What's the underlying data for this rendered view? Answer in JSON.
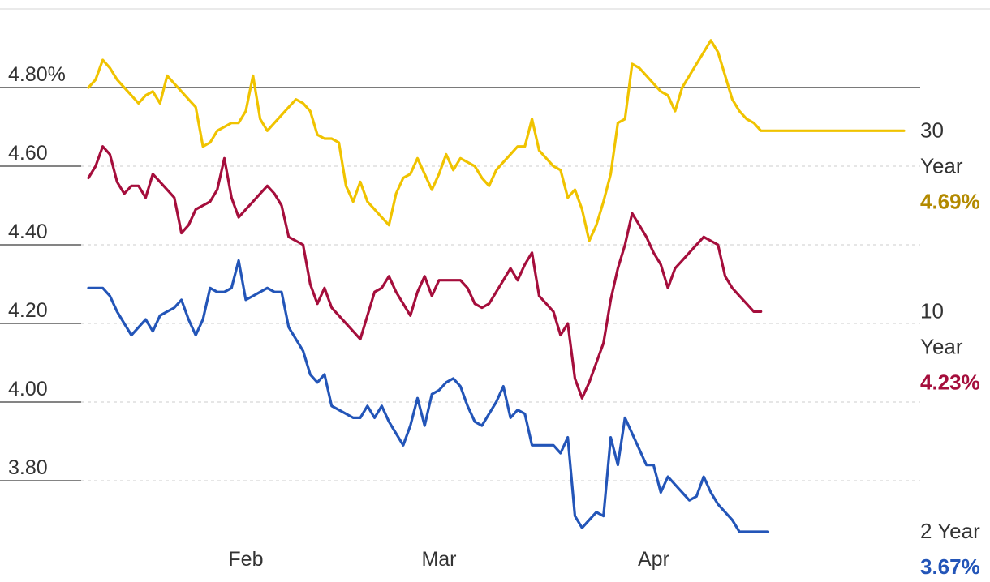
{
  "chart_data": {
    "type": "line",
    "ylim": [
      3.67,
      4.96
    ],
    "y_ticks": [
      {
        "value": 4.8,
        "label": "4.80%"
      },
      {
        "value": 4.6,
        "label": "4.60"
      },
      {
        "value": 4.4,
        "label": "4.40"
      },
      {
        "value": 4.2,
        "label": "4.20"
      },
      {
        "value": 4.0,
        "label": "4.00"
      },
      {
        "value": 3.8,
        "label": "3.80"
      }
    ],
    "x_ticks": [
      {
        "x": 23,
        "label": "Feb"
      },
      {
        "x": 50,
        "label": "Mar"
      },
      {
        "x": 80,
        "label": "Apr"
      }
    ],
    "xlim": [
      1,
      115
    ],
    "grid": true,
    "reference_line": 4.8,
    "series": [
      {
        "key": "y30",
        "name_lines": [
          "30",
          "Year"
        ],
        "end_value_label": "4.69%",
        "color": "#f0c300",
        "label_color": "#b38a00",
        "x": [
          1,
          2,
          3,
          4,
          5,
          6,
          7,
          8,
          9,
          10,
          11,
          12,
          13,
          14,
          15,
          16,
          17,
          18,
          19,
          20,
          21,
          22,
          23,
          24,
          25,
          26,
          27,
          28,
          29,
          30,
          31,
          32,
          33,
          34,
          35,
          36,
          37,
          38,
          39,
          40,
          41,
          42,
          43,
          44,
          45,
          46,
          47,
          48,
          49,
          50,
          51,
          52,
          53,
          54,
          55,
          56,
          57,
          58,
          59,
          60,
          61,
          62,
          63,
          64,
          65,
          66,
          67,
          68,
          69,
          70,
          71,
          72,
          73,
          74,
          75,
          76,
          77,
          78,
          79,
          80,
          81,
          82,
          83,
          84,
          85,
          86,
          87,
          88,
          89,
          90,
          91,
          92,
          93,
          94,
          95,
          96,
          97,
          98,
          99,
          100,
          101,
          102,
          103,
          104,
          105,
          106,
          107,
          108,
          109,
          110,
          111,
          112,
          113,
          114,
          115
        ],
        "y": [
          4.8,
          4.82,
          4.87,
          4.85,
          4.82,
          4.8,
          4.78,
          4.76,
          4.78,
          4.79,
          4.76,
          4.83,
          4.81,
          4.79,
          4.77,
          4.75,
          4.65,
          4.66,
          4.69,
          4.7,
          4.71,
          4.71,
          4.74,
          4.83,
          4.72,
          4.69,
          4.71,
          4.73,
          4.75,
          4.77,
          4.76,
          4.74,
          4.68,
          4.67,
          4.67,
          4.66,
          4.55,
          4.51,
          4.56,
          4.51,
          4.49,
          4.47,
          4.45,
          4.53,
          4.57,
          4.58,
          4.62,
          4.58,
          4.54,
          4.58,
          4.63,
          4.59,
          4.62,
          4.61,
          4.6,
          4.57,
          4.55,
          4.59,
          4.61,
          4.63,
          4.65,
          4.65,
          4.72,
          4.64,
          4.62,
          4.6,
          4.59,
          4.52,
          4.54,
          4.49,
          4.41,
          4.45,
          4.51,
          4.58,
          4.71,
          4.72,
          4.86,
          4.85,
          4.83,
          4.81,
          4.79,
          4.78,
          4.74,
          4.8,
          4.83,
          4.86,
          4.89,
          4.92,
          4.89,
          4.83,
          4.77,
          4.74,
          4.72,
          4.71,
          4.69,
          4.69,
          4.69,
          4.69,
          4.69,
          4.69,
          4.69,
          4.69,
          4.69,
          4.69,
          4.69,
          4.69,
          4.69,
          4.69,
          4.69,
          4.69,
          4.69,
          4.69,
          4.69,
          4.69,
          4.69
        ]
      },
      {
        "key": "y10",
        "name_lines": [
          "10",
          "Year"
        ],
        "end_value_label": "4.23%",
        "color": "#a50e3c",
        "label_color": "#a50e3c",
        "x": [
          1,
          2,
          3,
          4,
          5,
          6,
          7,
          8,
          9,
          10,
          11,
          12,
          13,
          14,
          15,
          16,
          17,
          18,
          19,
          20,
          21,
          22,
          23,
          24,
          25,
          26,
          27,
          28,
          29,
          30,
          31,
          32,
          33,
          34,
          35,
          36,
          37,
          38,
          39,
          40,
          41,
          42,
          43,
          44,
          45,
          46,
          47,
          48,
          49,
          50,
          51,
          52,
          53,
          54,
          55,
          56,
          57,
          58,
          59,
          60,
          61,
          62,
          63,
          64,
          65,
          66,
          67,
          68,
          69,
          70,
          71,
          72,
          73,
          74,
          75,
          76,
          77,
          78,
          79,
          80,
          81,
          82,
          83,
          84,
          85,
          86,
          87,
          88,
          89,
          90,
          91,
          92,
          93,
          94,
          95
        ],
        "y": [
          4.57,
          4.6,
          4.65,
          4.63,
          4.56,
          4.53,
          4.55,
          4.55,
          4.52,
          4.58,
          4.56,
          4.54,
          4.52,
          4.43,
          4.45,
          4.49,
          4.5,
          4.51,
          4.54,
          4.62,
          4.52,
          4.47,
          4.49,
          4.51,
          4.53,
          4.55,
          4.53,
          4.5,
          4.42,
          4.41,
          4.4,
          4.3,
          4.25,
          4.29,
          4.24,
          4.22,
          4.2,
          4.18,
          4.16,
          4.22,
          4.28,
          4.29,
          4.32,
          4.28,
          4.25,
          4.22,
          4.28,
          4.32,
          4.27,
          4.31,
          4.31,
          4.31,
          4.31,
          4.29,
          4.25,
          4.24,
          4.25,
          4.28,
          4.31,
          4.34,
          4.31,
          4.35,
          4.38,
          4.27,
          4.25,
          4.23,
          4.17,
          4.2,
          4.06,
          4.01,
          4.05,
          4.1,
          4.15,
          4.26,
          4.34,
          4.4,
          4.48,
          4.45,
          4.42,
          4.38,
          4.35,
          4.29,
          4.34,
          4.36,
          4.38,
          4.4,
          4.42,
          4.41,
          4.4,
          4.32,
          4.29,
          4.27,
          4.25,
          4.23,
          4.23
        ]
      },
      {
        "key": "y2",
        "name_lines": [
          "2 Year"
        ],
        "end_value_label": "3.67%",
        "color": "#2355b8",
        "label_color": "#2355b8",
        "x": [
          1,
          2,
          3,
          4,
          5,
          6,
          7,
          8,
          9,
          10,
          11,
          12,
          13,
          14,
          15,
          16,
          17,
          18,
          19,
          20,
          21,
          22,
          23,
          24,
          25,
          26,
          27,
          28,
          29,
          30,
          31,
          32,
          33,
          34,
          35,
          36,
          37,
          38,
          39,
          40,
          41,
          42,
          43,
          44,
          45,
          46,
          47,
          48,
          49,
          50,
          51,
          52,
          53,
          54,
          55,
          56,
          57,
          58,
          59,
          60,
          61,
          62,
          63,
          64,
          65,
          66,
          67,
          68,
          69,
          70,
          71,
          72,
          73,
          74,
          75,
          76,
          77,
          78,
          79,
          80,
          81,
          82,
          83,
          84,
          85,
          86,
          87,
          88,
          89,
          90,
          91,
          92,
          93,
          94,
          95,
          96
        ],
        "y": [
          4.29,
          4.29,
          4.29,
          4.27,
          4.23,
          4.2,
          4.17,
          4.19,
          4.21,
          4.18,
          4.22,
          4.23,
          4.24,
          4.26,
          4.21,
          4.17,
          4.21,
          4.29,
          4.28,
          4.28,
          4.29,
          4.36,
          4.26,
          4.27,
          4.28,
          4.29,
          4.28,
          4.28,
          4.19,
          4.16,
          4.13,
          4.07,
          4.05,
          4.07,
          3.99,
          3.98,
          3.97,
          3.96,
          3.96,
          3.99,
          3.96,
          3.99,
          3.95,
          3.92,
          3.89,
          3.94,
          4.01,
          3.94,
          4.02,
          4.03,
          4.05,
          4.06,
          4.04,
          3.99,
          3.95,
          3.94,
          3.97,
          4.0,
          4.04,
          3.96,
          3.98,
          3.97,
          3.89,
          3.89,
          3.89,
          3.89,
          3.87,
          3.91,
          3.71,
          3.68,
          3.7,
          3.72,
          3.71,
          3.91,
          3.84,
          3.96,
          3.92,
          3.88,
          3.84,
          3.84,
          3.77,
          3.81,
          3.79,
          3.77,
          3.75,
          3.76,
          3.81,
          3.77,
          3.74,
          3.72,
          3.7,
          3.67,
          3.67,
          3.67,
          3.67,
          3.67
        ]
      }
    ]
  }
}
